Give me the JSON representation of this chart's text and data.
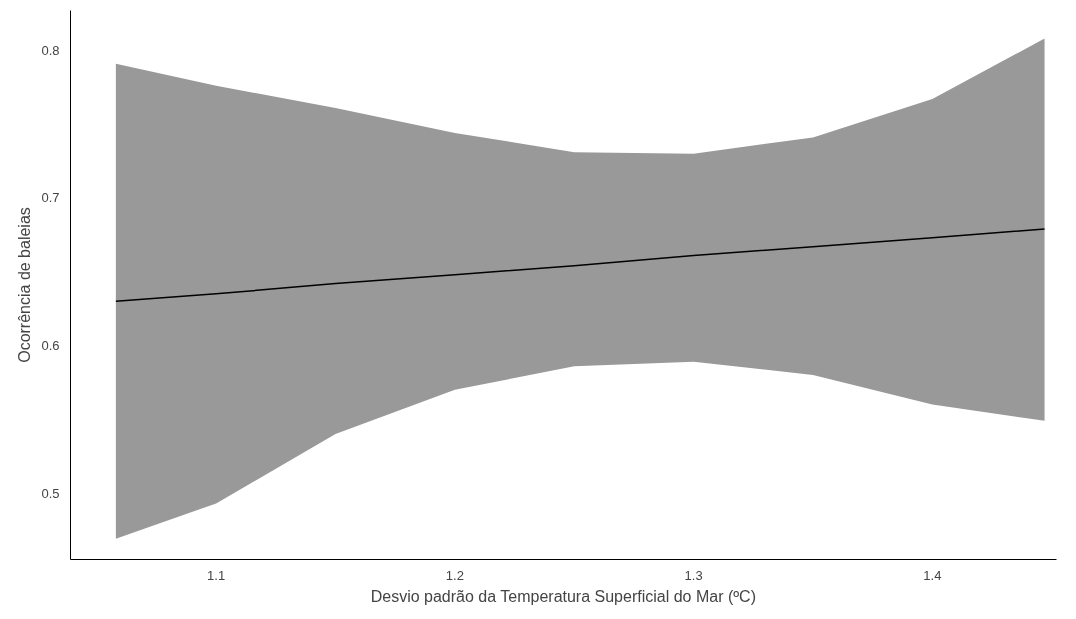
{
  "chart_data": {
    "type": "line",
    "xlabel": "Desvio padrão da Temperatura Superficial do Mar (ºC)",
    "ylabel": "Ocorrência de baleias",
    "x": [
      1.058,
      1.1,
      1.15,
      1.2,
      1.25,
      1.3,
      1.35,
      1.4,
      1.447
    ],
    "series": [
      {
        "color": "#000000",
        "values": [
          0.63,
          0.635,
          0.642,
          0.648,
          0.654,
          0.661,
          0.667,
          0.673,
          0.679
        ],
        "lower": [
          0.469,
          0.493,
          0.54,
          0.57,
          0.586,
          0.589,
          0.58,
          0.56,
          0.549
        ],
        "upper": [
          0.791,
          0.776,
          0.761,
          0.744,
          0.731,
          0.73,
          0.741,
          0.767,
          0.808
        ]
      }
    ],
    "xlim": [
      1.039,
      1.452
    ],
    "ylim": [
      0.455,
      0.827
    ],
    "xticks": [
      1.1,
      1.2,
      1.3,
      1.4
    ],
    "yticks": [
      0.5,
      0.6,
      0.7,
      0.8
    ],
    "grid": false,
    "line_style": "solid"
  }
}
